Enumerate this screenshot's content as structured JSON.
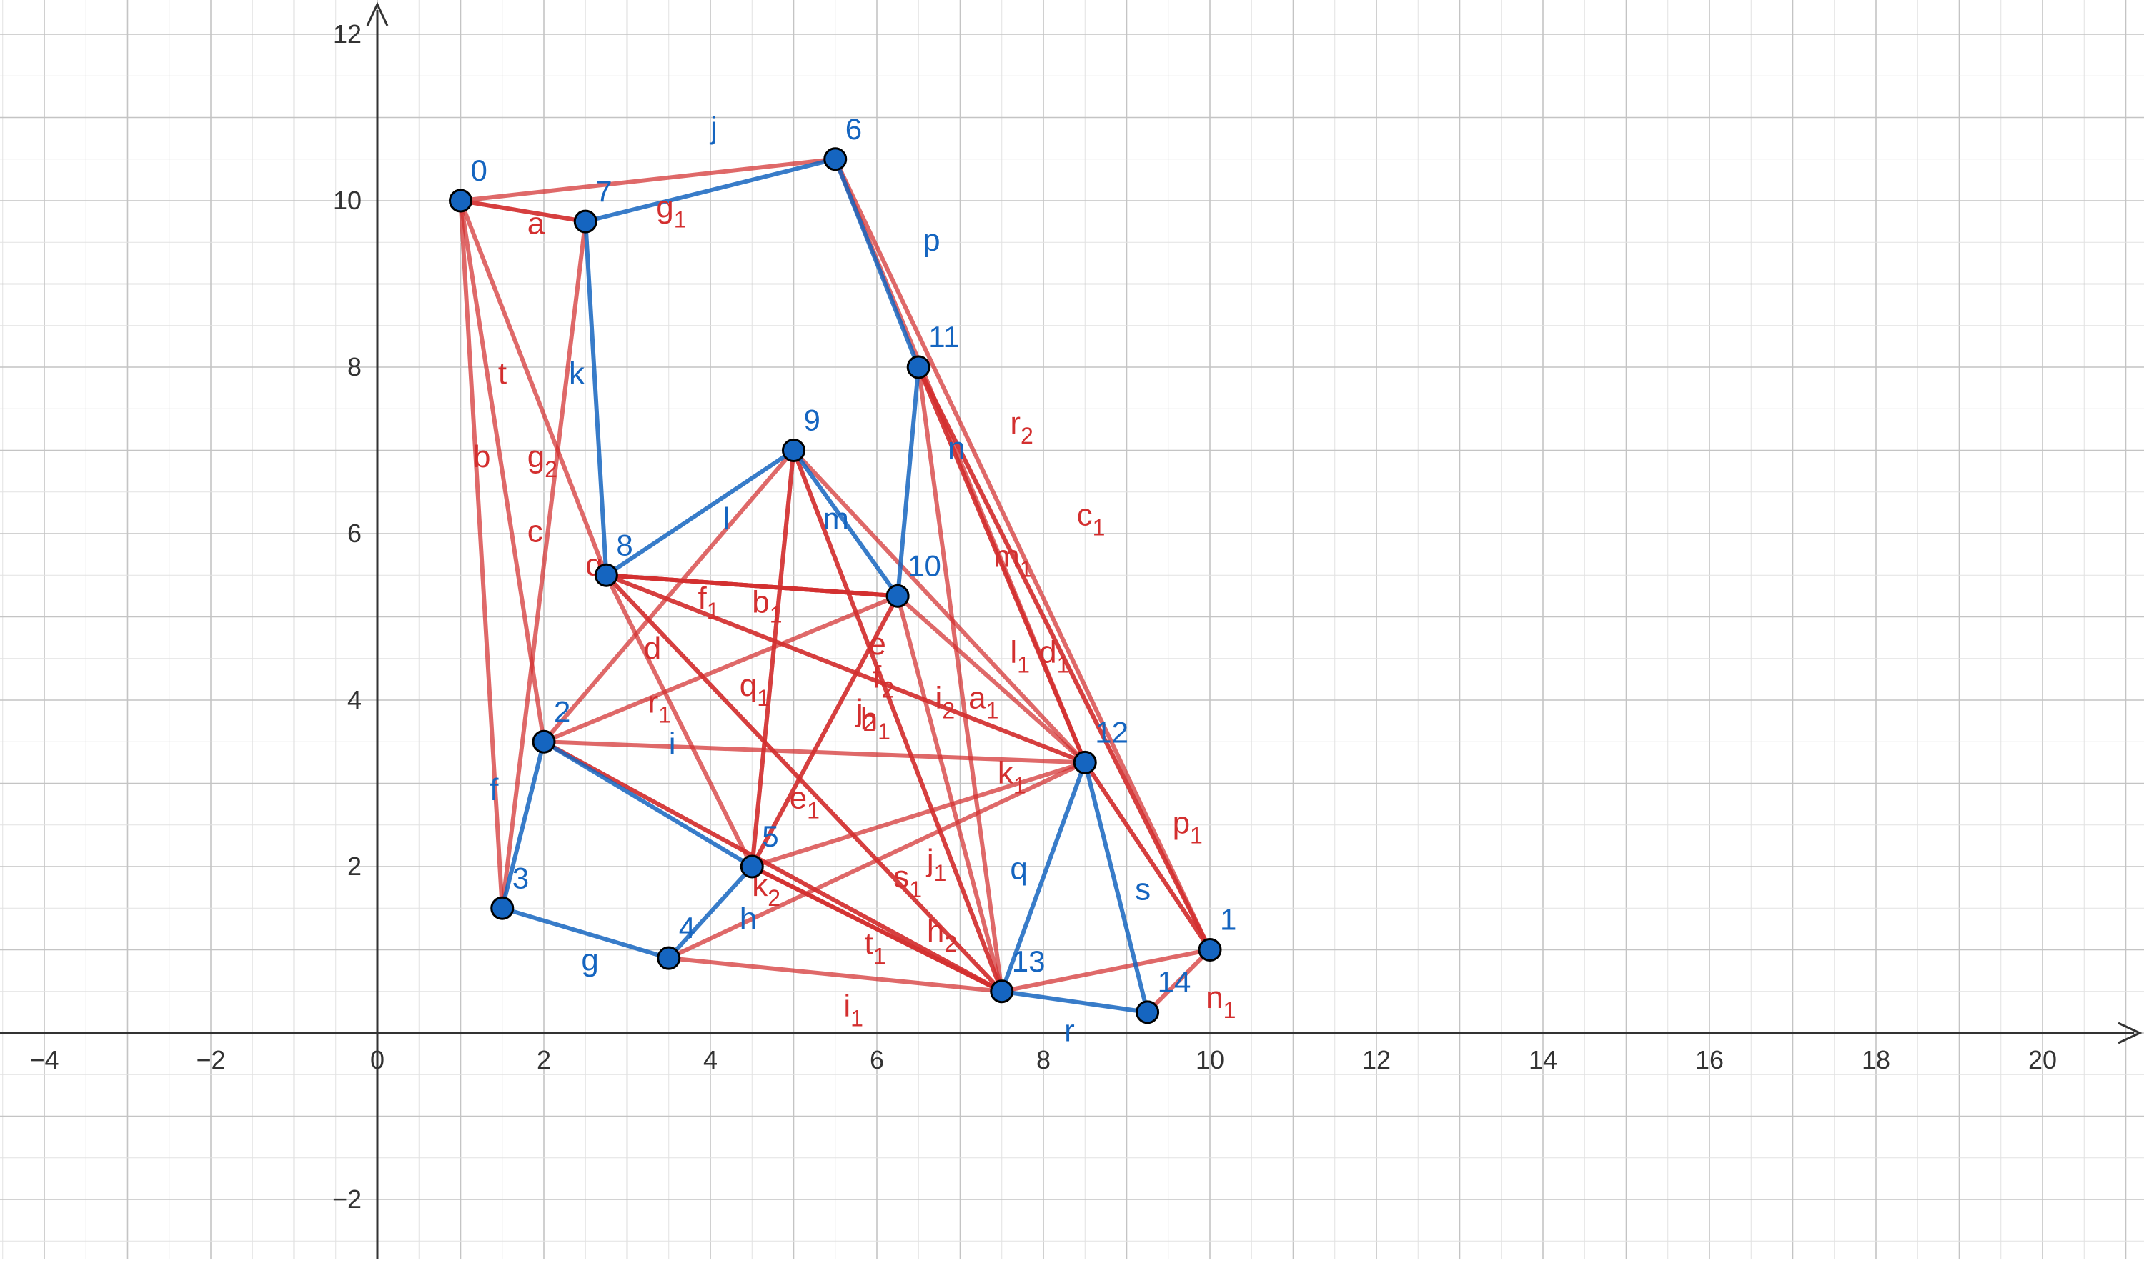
{
  "graph": {
    "colors": {
      "red": "#D32F2F",
      "blue": "#1565C0",
      "vertex_fill": "#1565C0",
      "vertex_stroke": "#000000",
      "grid_minor": "#e2e2e2",
      "grid_major": "#c4c4c4",
      "axis": "#333333"
    },
    "x_range": [
      -4.5,
      21.2
    ],
    "y_range": [
      -2.7,
      12.3
    ],
    "x_ticks": [
      "-4",
      "-2",
      "0",
      "2",
      "4",
      "6",
      "8",
      "10",
      "12",
      "14",
      "16",
      "18",
      "20"
    ],
    "y_ticks": [
      "-2",
      "2",
      "4",
      "6",
      "8",
      "10",
      "12"
    ],
    "vertices": [
      {
        "id": "0",
        "x": 1.0,
        "y": 10.0
      },
      {
        "id": "1",
        "x": 10.0,
        "y": 1.0
      },
      {
        "id": "2",
        "x": 2.0,
        "y": 3.5
      },
      {
        "id": "3",
        "x": 1.5,
        "y": 1.5
      },
      {
        "id": "4",
        "x": 3.5,
        "y": 0.9
      },
      {
        "id": "5",
        "x": 4.5,
        "y": 2.0
      },
      {
        "id": "6",
        "x": 5.5,
        "y": 10.5
      },
      {
        "id": "7",
        "x": 2.5,
        "y": 9.75
      },
      {
        "id": "8",
        "x": 2.75,
        "y": 5.5
      },
      {
        "id": "9",
        "x": 5.0,
        "y": 7.0
      },
      {
        "id": "10",
        "x": 6.25,
        "y": 5.25
      },
      {
        "id": "11",
        "x": 6.5,
        "y": 8.0
      },
      {
        "id": "12",
        "x": 8.5,
        "y": 3.25
      },
      {
        "id": "13",
        "x": 7.5,
        "y": 0.5
      },
      {
        "id": "14",
        "x": 9.25,
        "y": 0.25
      }
    ],
    "edges": [
      {
        "a": "0",
        "b": "7",
        "color": "red",
        "name": "a",
        "sub": "",
        "lx": 1.8,
        "ly": 9.6
      },
      {
        "a": "0",
        "b": "3",
        "color": "red",
        "name": "b",
        "sub": "",
        "lx": 1.15,
        "ly": 6.8
      },
      {
        "a": "0",
        "b": "2",
        "color": "red",
        "name": "c",
        "sub": "",
        "lx": 1.8,
        "ly": 5.9
      },
      {
        "a": "8",
        "b": "13",
        "color": "red",
        "name": "d",
        "sub": "",
        "lx": 3.2,
        "ly": 4.5
      },
      {
        "a": "8",
        "b": "12",
        "color": "red",
        "name": "e",
        "sub": "",
        "lx": 5.9,
        "ly": 4.55
      },
      {
        "a": "3",
        "b": "2",
        "color": "blue",
        "name": "f",
        "sub": "",
        "lx": 1.35,
        "ly": 2.8
      },
      {
        "a": "3",
        "b": "4",
        "color": "blue",
        "name": "g",
        "sub": "",
        "lx": 2.45,
        "ly": 0.75
      },
      {
        "a": "4",
        "b": "5",
        "color": "blue",
        "name": "h",
        "sub": "",
        "lx": 4.35,
        "ly": 1.25
      },
      {
        "a": "2",
        "b": "5",
        "color": "blue",
        "name": "i",
        "sub": "",
        "lx": 3.5,
        "ly": 3.35
      },
      {
        "a": "7",
        "b": "6",
        "color": "blue",
        "name": "j",
        "sub": "",
        "lx": 4.0,
        "ly": 10.75
      },
      {
        "a": "7",
        "b": "8",
        "color": "blue",
        "name": "k",
        "sub": "",
        "lx": 2.3,
        "ly": 7.8
      },
      {
        "a": "8",
        "b": "9",
        "color": "blue",
        "name": "l",
        "sub": "",
        "lx": 4.15,
        "ly": 6.05
      },
      {
        "a": "9",
        "b": "10",
        "color": "blue",
        "name": "m",
        "sub": "",
        "lx": 5.35,
        "ly": 6.05
      },
      {
        "a": "10",
        "b": "11",
        "color": "blue",
        "name": "n",
        "sub": "",
        "lx": 6.85,
        "ly": 6.9
      },
      {
        "a": "6",
        "b": "11",
        "color": "blue",
        "name": "p",
        "sub": "",
        "lx": 6.55,
        "ly": 9.4
      },
      {
        "a": "13",
        "b": "12",
        "color": "blue",
        "name": "q",
        "sub": "",
        "lx": 7.6,
        "ly": 1.85
      },
      {
        "a": "13",
        "b": "14",
        "color": "blue",
        "name": "r",
        "sub": "",
        "lx": 8.25,
        "ly": -0.1
      },
      {
        "a": "12",
        "b": "14",
        "color": "blue",
        "name": "s",
        "sub": "",
        "lx": 9.1,
        "ly": 1.6
      },
      {
        "a": "0",
        "b": "8",
        "color": "red",
        "name": "t",
        "sub": "",
        "lx": 1.45,
        "ly": 7.8
      },
      {
        "a": "0",
        "b": "6",
        "color": "red",
        "name": "",
        "sub": "",
        "lx": 0,
        "ly": 0
      },
      {
        "a": "8",
        "b": "10",
        "color": "red",
        "name": "",
        "sub": "",
        "lx": 0,
        "ly": 0
      },
      {
        "a": "8",
        "b": "5",
        "color": "red",
        "name": "",
        "sub": "",
        "lx": 0,
        "ly": 0
      },
      {
        "a": "2",
        "b": "13",
        "color": "red",
        "name": "",
        "sub": "",
        "lx": 0,
        "ly": 0
      },
      {
        "a": "5",
        "b": "13",
        "color": "red",
        "name": "",
        "sub": "",
        "lx": 0,
        "ly": 0
      },
      {
        "a": "5",
        "b": "12",
        "color": "red",
        "name": "",
        "sub": "",
        "lx": 0,
        "ly": 0
      },
      {
        "a": "12",
        "b": "1",
        "color": "red",
        "name": "",
        "sub": "",
        "lx": 0,
        "ly": 0
      },
      {
        "a": "10",
        "b": "12",
        "color": "red",
        "name": "",
        "sub": "",
        "lx": 0,
        "ly": 0
      },
      {
        "a": "11",
        "b": "12",
        "color": "red",
        "name": "",
        "sub": "",
        "lx": 0,
        "ly": 0
      },
      {
        "a": "13",
        "b": "1",
        "color": "red",
        "name": "",
        "sub": "",
        "lx": 0,
        "ly": 0
      },
      {
        "a": "9",
        "b": "12",
        "color": "red",
        "name": "a",
        "sub": "1",
        "lx": 7.1,
        "ly": 3.9
      },
      {
        "a": "9",
        "b": "5",
        "color": "red",
        "name": "b",
        "sub": "1",
        "lx": 4.5,
        "ly": 5.05
      },
      {
        "a": "6",
        "b": "1",
        "color": "red",
        "name": "c",
        "sub": "1",
        "lx": 8.4,
        "ly": 6.1
      },
      {
        "a": "11",
        "b": "1",
        "color": "red",
        "name": "d",
        "sub": "1",
        "lx": 7.95,
        "ly": 4.45
      },
      {
        "a": "10",
        "b": "5",
        "color": "red",
        "name": "e",
        "sub": "1",
        "lx": 4.95,
        "ly": 2.7
      },
      {
        "a": "8",
        "b": "10",
        "color": "red",
        "name": "f",
        "sub": "1",
        "lx": 3.85,
        "ly": 5.1
      },
      {
        "a": "0",
        "b": "7",
        "color": "red",
        "name": "g",
        "sub": "1",
        "lx": 3.35,
        "ly": 9.8
      },
      {
        "a": "9",
        "b": "13",
        "color": "red",
        "name": "h",
        "sub": "1",
        "lx": 5.8,
        "ly": 3.65
      },
      {
        "a": "4",
        "b": "13",
        "color": "red",
        "name": "i",
        "sub": "1",
        "lx": 5.6,
        "ly": 0.2
      },
      {
        "a": "11",
        "b": "13",
        "color": "red",
        "name": "j",
        "sub": "1",
        "lx": 6.6,
        "ly": 1.95
      },
      {
        "a": "4",
        "b": "12",
        "color": "red",
        "name": "k",
        "sub": "1",
        "lx": 7.45,
        "ly": 3.0
      },
      {
        "a": "6",
        "b": "12",
        "color": "red",
        "name": "l",
        "sub": "1",
        "lx": 7.6,
        "ly": 4.45
      },
      {
        "a": "11",
        "b": "12",
        "color": "red",
        "name": "m",
        "sub": "1",
        "lx": 7.4,
        "ly": 5.6
      },
      {
        "a": "14",
        "b": "1",
        "color": "red",
        "name": "n",
        "sub": "1",
        "lx": 9.95,
        "ly": 0.3
      },
      {
        "a": "12",
        "b": "1",
        "color": "red",
        "name": "p",
        "sub": "1",
        "lx": 9.55,
        "ly": 2.4
      },
      {
        "a": "9",
        "b": "5",
        "color": "red",
        "name": "q",
        "sub": "1",
        "lx": 4.35,
        "ly": 4.05
      },
      {
        "a": "2",
        "b": "12",
        "color": "red",
        "name": "r",
        "sub": "1",
        "lx": 3.25,
        "ly": 3.85
      },
      {
        "a": "8",
        "b": "13",
        "color": "red",
        "name": "s",
        "sub": "1",
        "lx": 6.2,
        "ly": 1.75
      },
      {
        "a": "5",
        "b": "13",
        "color": "red",
        "name": "t",
        "sub": "1",
        "lx": 5.85,
        "ly": 0.95
      },
      {
        "a": "8",
        "b": "10",
        "color": "red",
        "name": "",
        "sub": "",
        "lx": 0,
        "ly": 0
      },
      {
        "a": "2",
        "b": "9",
        "color": "red",
        "name": "",
        "sub": "",
        "lx": 0,
        "ly": 0
      },
      {
        "a": "2",
        "b": "10",
        "color": "red",
        "name": "",
        "sub": "",
        "lx": 0,
        "ly": 0
      },
      {
        "a": "10",
        "b": "13",
        "color": "red",
        "name": "",
        "sub": "",
        "lx": 0,
        "ly": 0
      },
      {
        "a": "9",
        "b": "13",
        "color": "red",
        "name": "f",
        "sub": "2",
        "lx": 5.95,
        "ly": 4.15
      },
      {
        "a": "7",
        "b": "3",
        "color": "red",
        "name": "g",
        "sub": "2",
        "lx": 1.8,
        "ly": 6.8
      },
      {
        "a": "2",
        "b": "13",
        "color": "red",
        "name": "h",
        "sub": "2",
        "lx": 6.6,
        "ly": 1.1
      },
      {
        "a": "8",
        "b": "12",
        "color": "red",
        "name": "i",
        "sub": "2",
        "lx": 6.7,
        "ly": 3.9
      },
      {
        "a": "10",
        "b": "5",
        "color": "red",
        "name": "j",
        "sub": "2",
        "lx": 5.75,
        "ly": 3.75
      },
      {
        "a": "5",
        "b": "13",
        "color": "red",
        "name": "k",
        "sub": "2",
        "lx": 4.5,
        "ly": 1.65
      },
      {
        "a": "11",
        "b": "1",
        "color": "red",
        "name": "r",
        "sub": "2",
        "lx": 7.6,
        "ly": 7.2
      },
      {
        "a": "8",
        "b": "10",
        "color": "red",
        "name": "q",
        "sub": "",
        "lx": 2.5,
        "ly": 5.5
      }
    ]
  }
}
